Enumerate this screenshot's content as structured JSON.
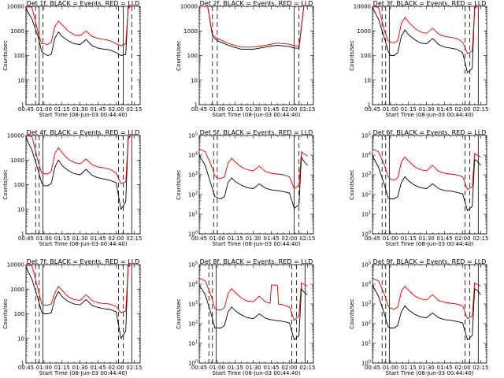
{
  "xticks": [
    "00:45",
    "01:00",
    "01:15",
    "01:30",
    "01:45",
    "02:00",
    "02:15"
  ],
  "xlabel": "Start Time (08-Jun-03 00:44:40)",
  "ylabel": "Counts/sec",
  "legend_black": "BLACK = Events",
  "legend_red": "RED = LLD",
  "colors": {
    "events": "#000000",
    "lld": "#e00000"
  },
  "chart_data": [
    {
      "type": "line",
      "title": "Det 1f, BLACK = Events, RED = LLD",
      "ylog": true,
      "ylim": [
        1,
        10000
      ],
      "ytype": "plain",
      "yticks": [
        "1",
        "10",
        "100",
        "1000",
        "10000"
      ],
      "x": [
        "00:45",
        "00:50",
        "00:55",
        "00:58",
        "01:00",
        "01:03",
        "01:06",
        "01:09",
        "01:12",
        "01:15",
        "01:20",
        "01:25",
        "01:30",
        "01:35",
        "01:40",
        "01:45",
        "01:50",
        "01:55",
        "02:00",
        "02:04",
        "02:08",
        "02:10",
        "02:12",
        "02:15"
      ],
      "series": [
        {
          "name": "Events",
          "values": [
            8000,
            3000,
            600,
            150,
            120,
            100,
            110,
            500,
            900,
            600,
            400,
            300,
            280,
            450,
            250,
            200,
            180,
            170,
            130,
            100,
            110,
            9000,
            10000,
            10000
          ]
        },
        {
          "name": "LLD",
          "values": [
            10000,
            9000,
            900,
            300,
            300,
            280,
            350,
            1500,
            2500,
            1800,
            1000,
            700,
            650,
            1000,
            600,
            500,
            450,
            400,
            300,
            250,
            300,
            8000,
            10000,
            10000
          ]
        }
      ],
      "vlines": [
        "00:45",
        "00:53",
        "00:56",
        "00:59",
        "02:02",
        "02:06",
        "02:13"
      ]
    },
    {
      "type": "line",
      "title": "Det 2f, BLACK = Events, RED = LLD",
      "ylog": true,
      "ylim": [
        1,
        10000
      ],
      "ytype": "plain",
      "yticks": [
        "1",
        "10",
        "100",
        "1000",
        "10000"
      ],
      "x": [
        "00:45",
        "00:52",
        "00:56",
        "01:00",
        "01:10",
        "01:20",
        "01:30",
        "01:40",
        "01:50",
        "02:00",
        "02:04",
        "02:08",
        "02:12",
        "02:15"
      ],
      "series": [
        {
          "name": "Events",
          "values": [
            10000,
            10000,
            600,
            400,
            250,
            180,
            180,
            220,
            260,
            230,
            200,
            200,
            10000,
            10000
          ]
        },
        {
          "name": "LLD",
          "values": [
            10000,
            10000,
            700,
            500,
            300,
            220,
            220,
            260,
            320,
            290,
            250,
            250,
            10000,
            10000
          ]
        }
      ],
      "vlines": [
        "00:56",
        "01:00",
        "02:04",
        "02:08"
      ]
    },
    {
      "type": "line",
      "title": "Det 3f, BLACK = Events, RED = LLD",
      "ylog": true,
      "ylim": [
        1,
        10000
      ],
      "ytype": "plain",
      "yticks": [
        "1",
        "10",
        "100",
        "1000",
        "10000"
      ],
      "x": [
        "00:45",
        "00:50",
        "00:55",
        "00:58",
        "01:00",
        "01:03",
        "01:06",
        "01:09",
        "01:12",
        "01:15",
        "01:20",
        "01:25",
        "01:30",
        "01:35",
        "01:40",
        "01:45",
        "01:50",
        "01:55",
        "02:00",
        "02:04",
        "02:08",
        "02:10",
        "02:12",
        "02:15"
      ],
      "series": [
        {
          "name": "Events",
          "values": [
            9000,
            3000,
            500,
            150,
            100,
            100,
            130,
            600,
            1100,
            700,
            450,
            320,
            300,
            500,
            280,
            220,
            200,
            180,
            130,
            20,
            30,
            9000,
            10000,
            10000
          ]
        },
        {
          "name": "LLD",
          "values": [
            10000,
            9000,
            1000,
            400,
            350,
            330,
            400,
            2000,
            3500,
            2300,
            1300,
            900,
            800,
            1300,
            750,
            600,
            550,
            500,
            350,
            120,
            150,
            8000,
            10000,
            10000
          ]
        }
      ],
      "vlines": [
        "00:53",
        "00:56",
        "00:59",
        "02:02",
        "02:06",
        "02:13"
      ]
    },
    {
      "type": "line",
      "title": "Det 4f, BLACK = Events, RED = LLD",
      "ylog": true,
      "ylim": [
        1,
        10000
      ],
      "ytype": "plain",
      "yticks": [
        "1",
        "10",
        "100",
        "1000",
        "10000"
      ],
      "x": [
        "00:45",
        "00:50",
        "00:55",
        "00:58",
        "01:00",
        "01:03",
        "01:06",
        "01:09",
        "01:12",
        "01:15",
        "01:20",
        "01:25",
        "01:30",
        "01:35",
        "01:40",
        "01:45",
        "01:50",
        "01:55",
        "02:00",
        "02:04",
        "02:08",
        "02:10",
        "02:12",
        "02:15"
      ],
      "series": [
        {
          "name": "Events",
          "values": [
            8000,
            2500,
            400,
            120,
            90,
            90,
            110,
            500,
            1000,
            600,
            380,
            280,
            250,
            420,
            240,
            190,
            170,
            150,
            120,
            10,
            20,
            8000,
            10000,
            10000
          ]
        },
        {
          "name": "LLD",
          "values": [
            10000,
            9000,
            900,
            300,
            280,
            270,
            350,
            1800,
            3200,
            2000,
            1100,
            800,
            700,
            1100,
            650,
            520,
            480,
            420,
            300,
            110,
            130,
            7000,
            10000,
            10000
          ]
        }
      ],
      "vlines": [
        "00:53",
        "00:56",
        "00:59",
        "02:02",
        "02:06",
        "02:13"
      ]
    },
    {
      "type": "line",
      "title": "Det 5f, BLACK = Events, RED = LLD",
      "ylog": true,
      "ylim": [
        1,
        100000
      ],
      "ytype": "exp",
      "yticks": [
        "10^0",
        "10^1",
        "10^2",
        "10^3",
        "10^4",
        "10^5"
      ],
      "x": [
        "00:45",
        "00:50",
        "00:55",
        "00:58",
        "01:00",
        "01:03",
        "01:06",
        "01:09",
        "01:12",
        "01:15",
        "01:20",
        "01:25",
        "01:30",
        "01:35",
        "01:40",
        "01:45",
        "01:50",
        "01:55",
        "02:00",
        "02:04",
        "02:08",
        "02:10",
        "02:12",
        "02:15"
      ],
      "series": [
        {
          "name": "Events",
          "values": [
            10000,
            3000,
            300,
            80,
            70,
            60,
            80,
            400,
            700,
            450,
            300,
            220,
            200,
            350,
            210,
            170,
            160,
            140,
            120,
            20,
            30,
            8000,
            5000,
            3000
          ]
        },
        {
          "name": "LLD",
          "values": [
            20000,
            15000,
            3000,
            900,
            700,
            650,
            800,
            4000,
            7000,
            4500,
            2500,
            1800,
            1600,
            2800,
            1500,
            1200,
            1100,
            1000,
            800,
            200,
            300,
            15000,
            12000,
            9000
          ]
        }
      ],
      "vlines": [
        "00:57",
        "01:00",
        "02:04",
        "02:08"
      ]
    },
    {
      "type": "line",
      "title": "Det 6f, BLACK = Events, RED = LLD",
      "ylog": true,
      "ylim": [
        1,
        100000
      ],
      "ytype": "exp",
      "yticks": [
        "10^0",
        "10^1",
        "10^2",
        "10^3",
        "10^4",
        "10^5"
      ],
      "x": [
        "00:45",
        "00:50",
        "00:55",
        "00:58",
        "01:00",
        "01:03",
        "01:06",
        "01:09",
        "01:12",
        "01:15",
        "01:20",
        "01:25",
        "01:30",
        "01:35",
        "01:40",
        "01:45",
        "01:50",
        "01:55",
        "02:00",
        "02:04",
        "02:08",
        "02:10",
        "02:12",
        "02:15"
      ],
      "series": [
        {
          "name": "Events",
          "values": [
            9000,
            2500,
            300,
            70,
            60,
            60,
            80,
            400,
            800,
            500,
            300,
            220,
            200,
            350,
            200,
            160,
            150,
            130,
            110,
            15,
            25,
            6000,
            5000,
            3000
          ]
        },
        {
          "name": "LLD",
          "values": [
            20000,
            15000,
            3000,
            800,
            600,
            550,
            700,
            4500,
            8000,
            5000,
            2600,
            1800,
            1600,
            3000,
            1500,
            1200,
            1100,
            1000,
            800,
            180,
            250,
            12000,
            10000,
            8000
          ]
        }
      ],
      "vlines": [
        "00:53",
        "00:56",
        "00:59",
        "02:02",
        "02:06",
        "02:13"
      ]
    },
    {
      "type": "line",
      "title": "Det 7f, BLACK = Events, RED = LLD",
      "ylog": true,
      "ylim": [
        1,
        10000
      ],
      "ytype": "plain",
      "yticks": [
        "1",
        "10",
        "100",
        "1000",
        "10000"
      ],
      "x": [
        "00:45",
        "00:50",
        "00:55",
        "00:58",
        "01:00",
        "01:03",
        "01:06",
        "01:09",
        "01:12",
        "01:15",
        "01:20",
        "01:25",
        "01:30",
        "01:35",
        "01:40",
        "01:45",
        "01:50",
        "01:55",
        "02:00",
        "02:04",
        "02:08",
        "02:10",
        "02:12",
        "02:15"
      ],
      "series": [
        {
          "name": "Events",
          "values": [
            8000,
            2500,
            400,
            120,
            100,
            100,
            110,
            400,
            800,
            500,
            320,
            250,
            230,
            380,
            220,
            180,
            160,
            150,
            120,
            10,
            20,
            9000,
            10000,
            10000
          ]
        },
        {
          "name": "LLD",
          "values": [
            10000,
            9000,
            1000,
            260,
            230,
            220,
            260,
            700,
            1300,
            900,
            500,
            380,
            350,
            600,
            350,
            280,
            260,
            250,
            200,
            110,
            130,
            8000,
            10000,
            10000
          ]
        }
      ],
      "vlines": [
        "00:53",
        "00:56",
        "00:59",
        "02:02",
        "02:06",
        "02:13"
      ]
    },
    {
      "type": "line",
      "title": "Det 8f, BLACK = Events, RED = LLD",
      "ylog": true,
      "ylim": [
        1,
        100000
      ],
      "ytype": "exp",
      "yticks": [
        "10^0",
        "10^1",
        "10^2",
        "10^3",
        "10^4",
        "10^5"
      ],
      "x": [
        "00:45",
        "00:50",
        "00:55",
        "00:58",
        "01:00",
        "01:03",
        "01:06",
        "01:09",
        "01:12",
        "01:15",
        "01:20",
        "01:25",
        "01:30",
        "01:35",
        "01:40",
        "01:44",
        "01:45",
        "01:50",
        "01:51",
        "01:55",
        "02:00",
        "02:04",
        "02:08",
        "02:10",
        "02:12",
        "02:15"
      ],
      "series": [
        {
          "name": "Events",
          "values": [
            9000,
            3000,
            300,
            60,
            60,
            60,
            80,
            400,
            700,
            450,
            280,
            200,
            180,
            320,
            190,
            160,
            160,
            140,
            140,
            130,
            110,
            15,
            25,
            6000,
            4000,
            3000
          ]
        },
        {
          "name": "LLD",
          "values": [
            20000,
            15000,
            2500,
            600,
            500,
            500,
            650,
            3500,
            6000,
            3800,
            2000,
            1400,
            1300,
            2500,
            1300,
            1100,
            9000,
            9000,
            1000,
            900,
            700,
            150,
            250,
            12000,
            10000,
            8000
          ]
        }
      ],
      "vlines": [
        "00:53",
        "00:56",
        "00:59",
        "02:02",
        "02:06",
        "02:13"
      ]
    },
    {
      "type": "line",
      "title": "Det 9f, BLACK = Events, RED = LLD",
      "ylog": true,
      "ylim": [
        1,
        100000
      ],
      "ytype": "exp",
      "yticks": [
        "10^0",
        "10^1",
        "10^2",
        "10^3",
        "10^4",
        "10^5"
      ],
      "x": [
        "00:45",
        "00:50",
        "00:55",
        "00:58",
        "01:00",
        "01:03",
        "01:06",
        "01:09",
        "01:12",
        "01:15",
        "01:20",
        "01:25",
        "01:30",
        "01:35",
        "01:40",
        "01:45",
        "01:50",
        "01:55",
        "02:00",
        "02:04",
        "02:08",
        "02:10",
        "02:12",
        "02:15"
      ],
      "series": [
        {
          "name": "Events",
          "values": [
            9000,
            2500,
            300,
            70,
            60,
            60,
            80,
            400,
            800,
            500,
            300,
            220,
            200,
            350,
            200,
            160,
            150,
            130,
            110,
            15,
            25,
            6000,
            5000,
            3000
          ]
        },
        {
          "name": "LLD",
          "values": [
            20000,
            15000,
            3000,
            800,
            600,
            550,
            700,
            4500,
            8000,
            5000,
            2600,
            1800,
            1600,
            3000,
            1500,
            1200,
            1100,
            1000,
            800,
            180,
            250,
            12000,
            10000,
            8000
          ]
        }
      ],
      "vlines": [
        "00:53",
        "00:56",
        "00:59",
        "02:02",
        "02:06",
        "02:13"
      ]
    }
  ]
}
